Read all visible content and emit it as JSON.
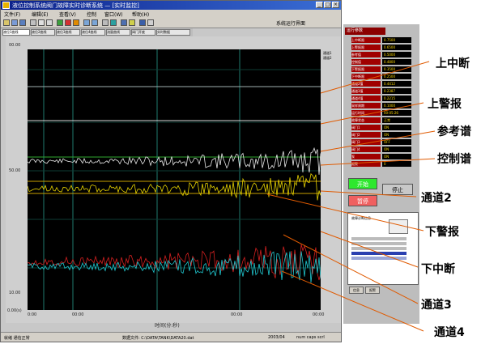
{
  "window": {
    "title": "液位控制系统阀门故障实时诊断系统 — [实时监控]",
    "menus": [
      "文件(F)",
      "编辑(E)",
      "查看(V)",
      "控制",
      "窗口(W)",
      "帮助(H)"
    ],
    "toolbar_label": "系统运行界面"
  },
  "tabs": [
    "液位1曲线",
    "液位2曲线",
    "液位3曲线",
    "液位4曲线",
    "流量曲线",
    "阀门开度",
    "实时数据"
  ],
  "plot": {
    "y_top_label": "00.00",
    "y_mid_label": "50.00",
    "y_low_label": "10.00",
    "y_bottom_label": "0.00(s)",
    "x_start_label": "0:00",
    "x_mid_label": "00:00",
    "x_mid2_label": "00:00",
    "x_end_label": "00:00",
    "x_axis_title": "时间(分:秒)",
    "legend": [
      "通道1",
      "通道2"
    ],
    "colors": {
      "background": "#000000",
      "grid": "#1f7a6e",
      "upper_interrupt": "#9fb0b0",
      "upper_alarm": "#d8d8d8",
      "reference": "#2fa82f",
      "control": "#e8e8e8",
      "channel2": "#e6d200",
      "lower_alarm": "#c8a000",
      "channel3": "#d42020",
      "channel4": "#20c8d0"
    }
  },
  "params": {
    "header": "运行参数",
    "rows": [
      {
        "label": "上中断限",
        "value": "0.7500"
      },
      {
        "label": "上警报限",
        "value": "0.6500"
      },
      {
        "label": "参考值",
        "value": "0.5000"
      },
      {
        "label": "控制值",
        "value": "0.4800"
      },
      {
        "label": "下警报限",
        "value": "0.3500"
      },
      {
        "label": "下中断限",
        "value": "0.2500"
      },
      {
        "label": "通道2值",
        "value": "0.4412"
      },
      {
        "label": "通道3值",
        "value": "0.2387"
      },
      {
        "label": "通道4值",
        "value": "0.2215"
      },
      {
        "label": "采样周期",
        "value": "0.1000"
      },
      {
        "label": "运行时间",
        "value": "00:05:26"
      },
      {
        "label": "故障状态",
        "value": "正常"
      },
      {
        "label": "阀门1",
        "value": "ON"
      },
      {
        "label": "阀门2",
        "value": "ON"
      },
      {
        "label": "阀门3",
        "value": "OFF"
      },
      {
        "label": "阀门4",
        "value": "ON"
      },
      {
        "label": "泵",
        "value": "ON"
      },
      {
        "label": "报警",
        "value": "0"
      }
    ]
  },
  "buttons": {
    "start": "开始",
    "stop": "停止",
    "pause": "暂停"
  },
  "list_title": "故障诊断信息",
  "bottom_tabs": [
    "信息",
    "报警"
  ],
  "status": {
    "left": "就绪 通信正常",
    "center": "数据文件: C:\\DATA\\TANK\\DATA20.dat",
    "right1": "2003/04",
    "right2": "num  caps  scrl"
  },
  "callouts": [
    "上中断",
    "上警报",
    "参考谱",
    "控制谱",
    "通道2",
    "下警报",
    "下中断",
    "通道3",
    "通道4"
  ]
}
